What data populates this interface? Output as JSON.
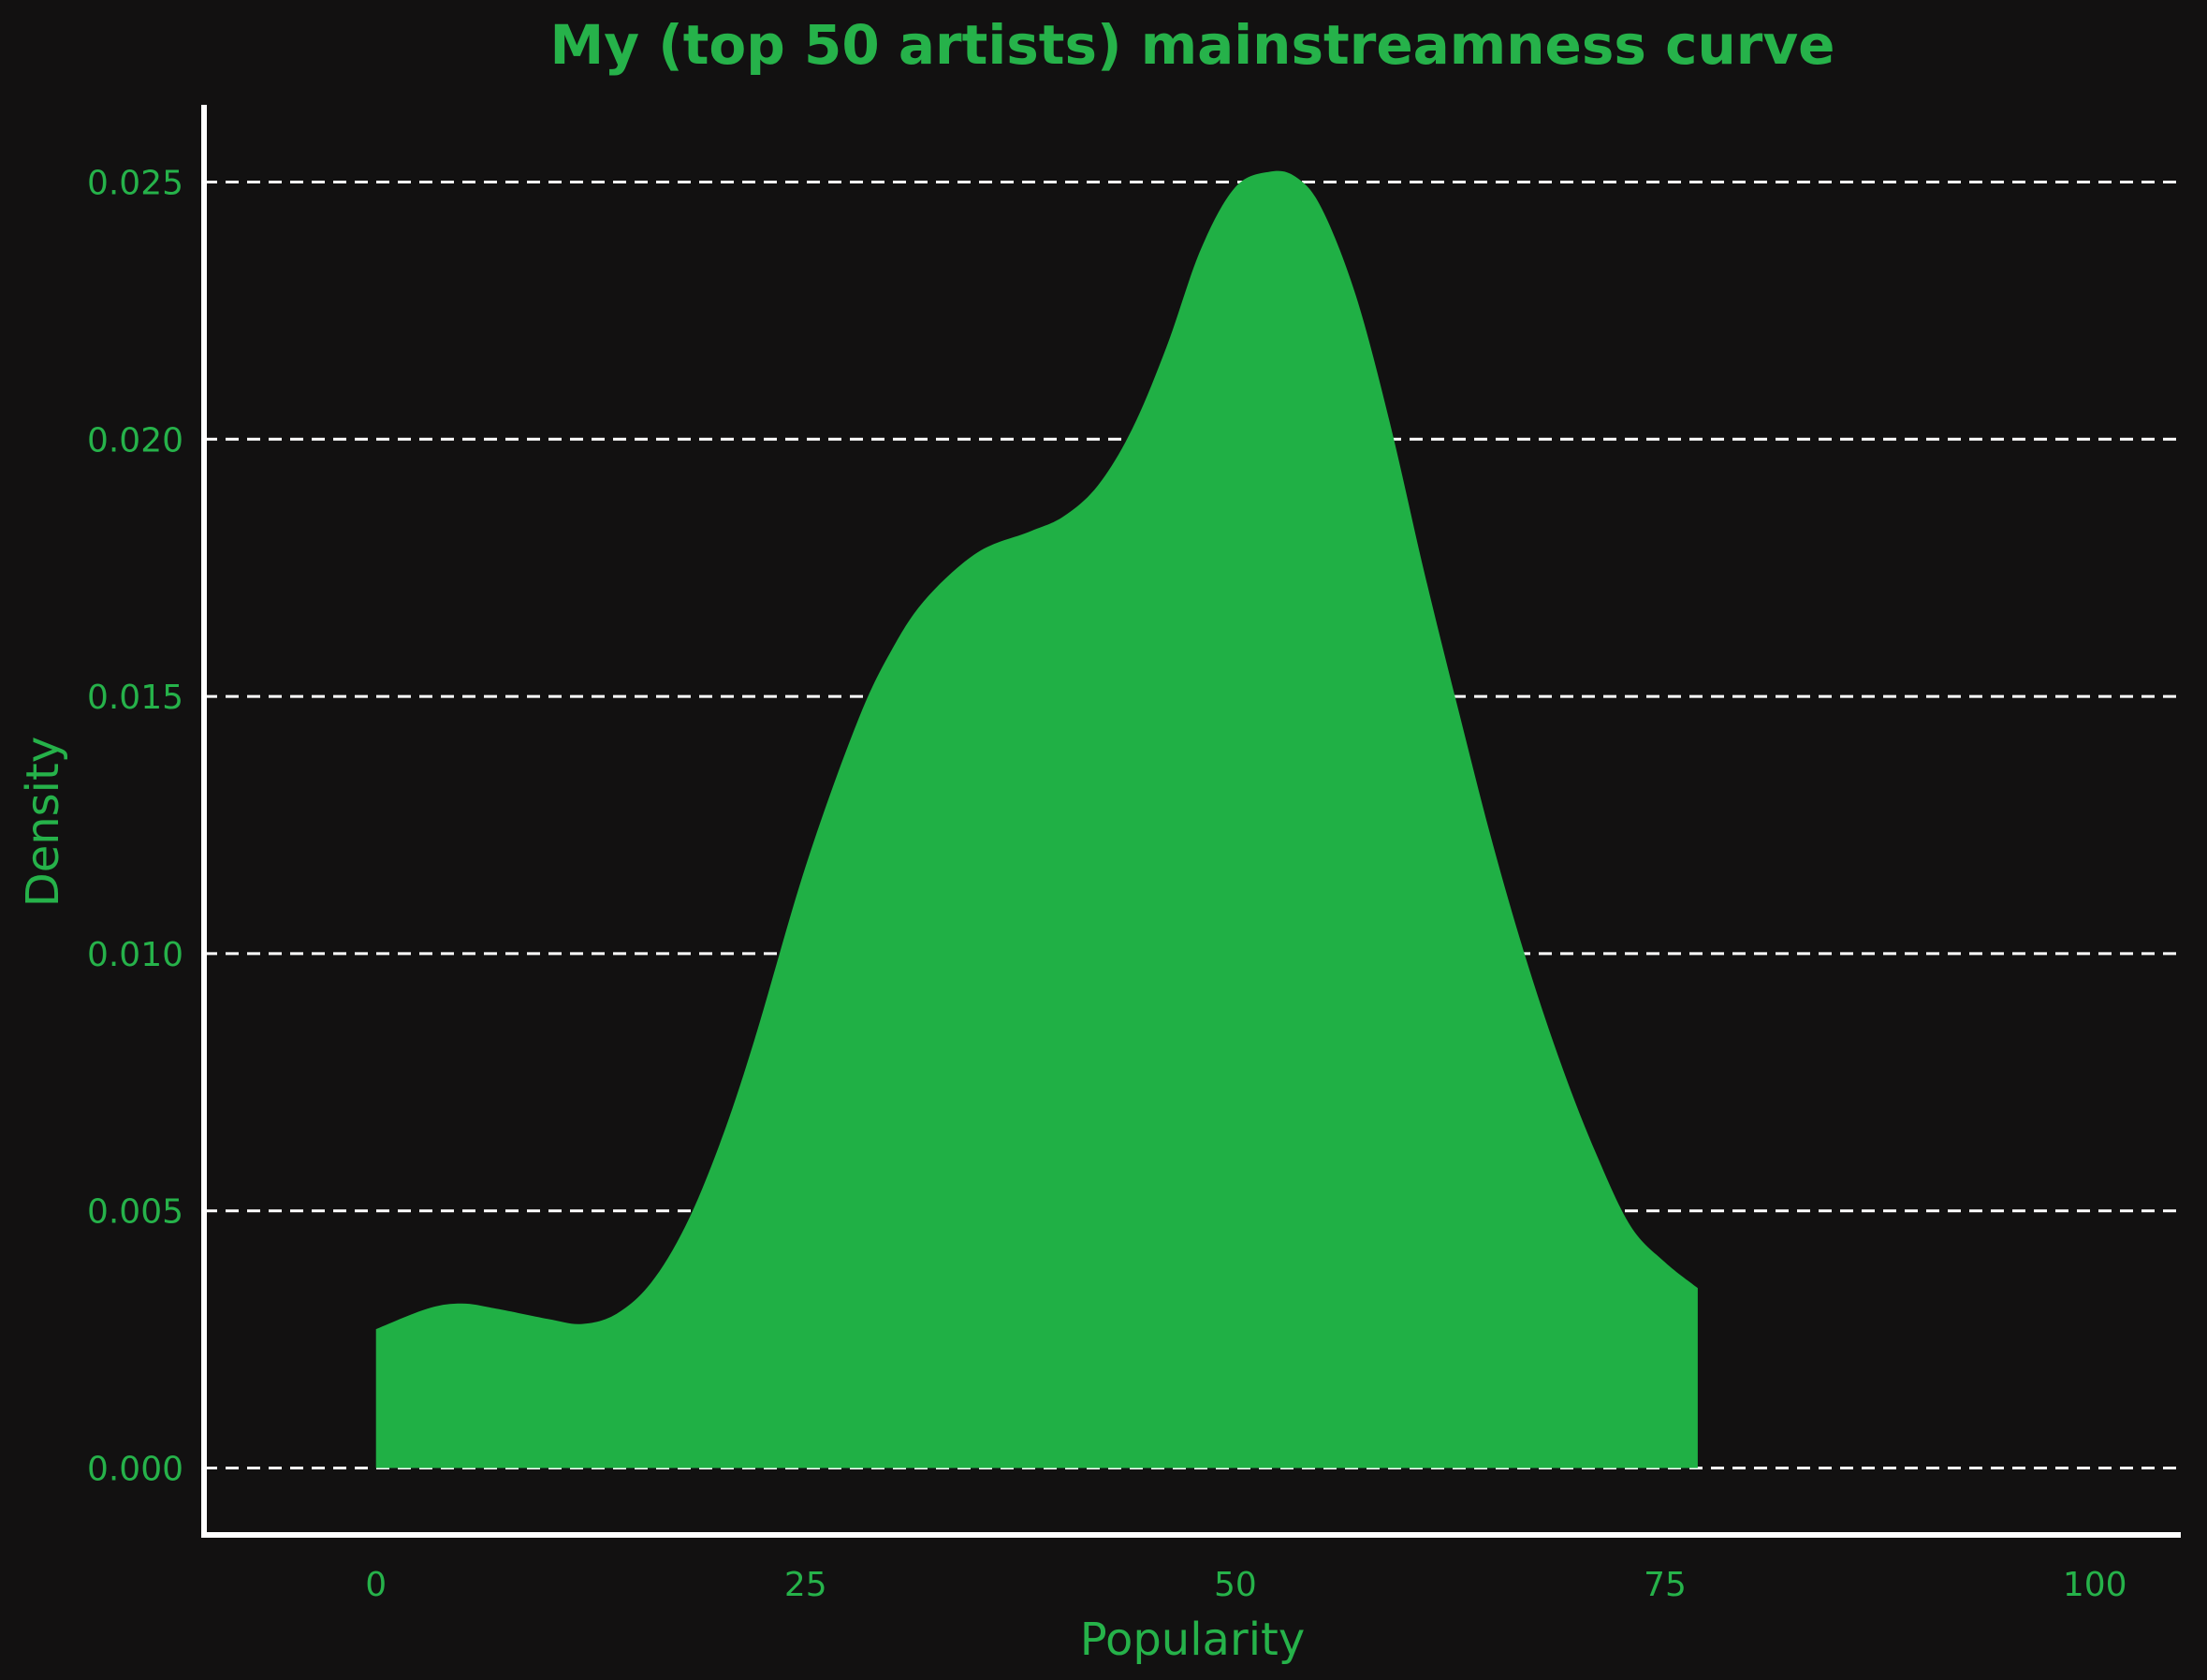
{
  "colors": {
    "background": "#121111",
    "accent": "#20b045",
    "text": "#26b24a",
    "grid": "#ffffff",
    "axis": "#ffffff"
  },
  "chart_data": {
    "type": "area",
    "title": "My (top 50 artists) mainstreamness curve",
    "xlabel": "Popularity",
    "ylabel": "Density",
    "xlim": [
      -10,
      105
    ],
    "ylim": [
      -0.0013,
      0.0265
    ],
    "xticks": [
      0,
      25,
      50,
      75,
      100
    ],
    "xtick_labels": [
      "0",
      "25",
      "50",
      "75",
      "100"
    ],
    "yticks": [
      0.0,
      0.005,
      0.01,
      0.015,
      0.02,
      0.025
    ],
    "ytick_labels": [
      "0.000",
      "0.005",
      "0.010",
      "0.015",
      "0.020",
      "0.025"
    ],
    "grid": "horizontal dashed",
    "series": [
      {
        "x": [
          0,
          3,
          5,
          7,
          10,
          12,
          14,
          16,
          18,
          20,
          22,
          25,
          28,
          30,
          32,
          35,
          38,
          40,
          42,
          44,
          46,
          48,
          50,
          52,
          53.5,
          55,
          57,
          59,
          61,
          63,
          65,
          67,
          69,
          71,
          73,
          75,
          76.9
        ],
        "y": [
          0.0027,
          0.0031,
          0.0032,
          0.0031,
          0.0029,
          0.0028,
          0.003,
          0.0036,
          0.0047,
          0.0063,
          0.0083,
          0.0117,
          0.0145,
          0.0159,
          0.0169,
          0.0178,
          0.0182,
          0.0185,
          0.0191,
          0.0202,
          0.0218,
          0.0237,
          0.0249,
          0.0252,
          0.0251,
          0.0245,
          0.0228,
          0.0203,
          0.0174,
          0.0147,
          0.0121,
          0.0098,
          0.0078,
          0.0061,
          0.0047,
          0.004,
          0.0035
        ]
      }
    ]
  }
}
